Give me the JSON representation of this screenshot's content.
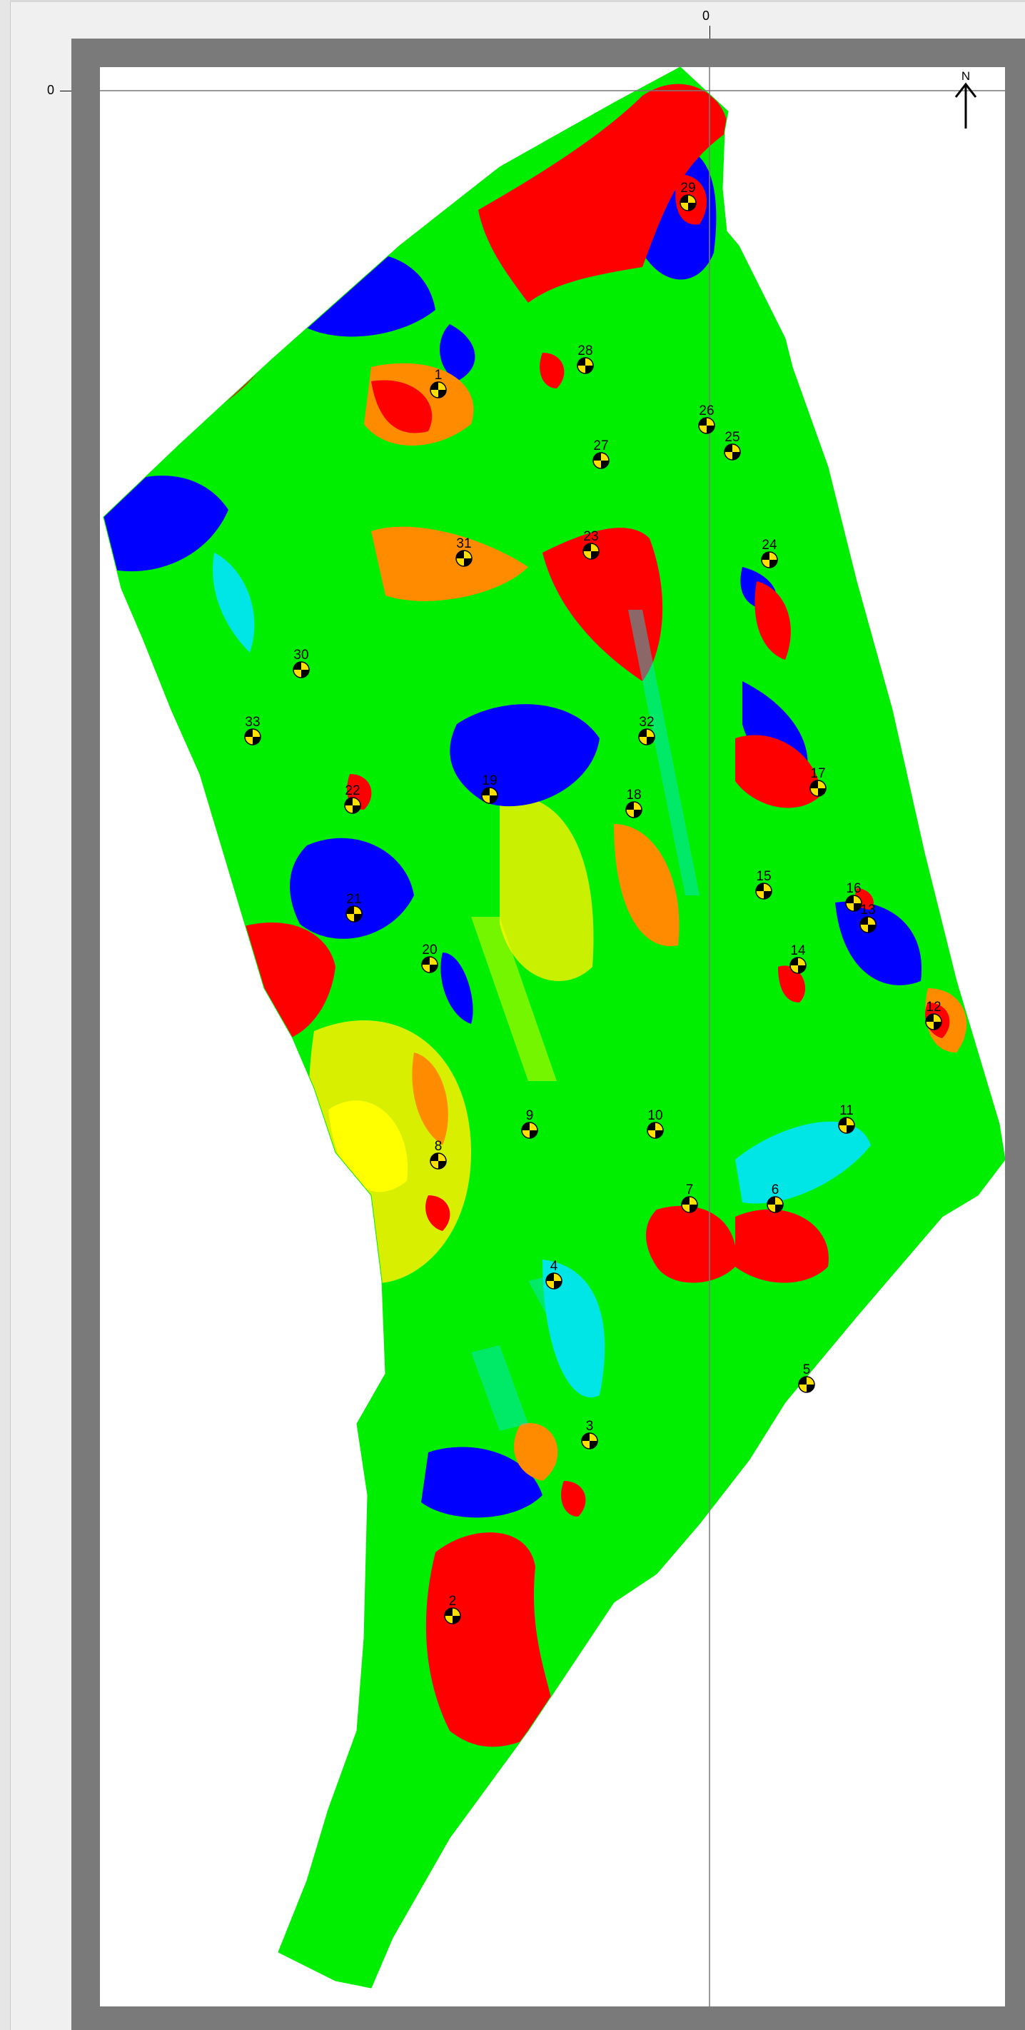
{
  "axes": {
    "x_origin_label": "0",
    "y_origin_label": "0"
  },
  "north_arrow": {
    "label": "N"
  },
  "colors": {
    "high": "#ff0000",
    "mid_high": "#ff8c00",
    "mid": "#ffff00",
    "background": "#00ee00",
    "mid_low": "#00e5e5",
    "low": "#0000ff",
    "frame": "#7a7a7a",
    "marker_fill": "#ffe000"
  },
  "wells": [
    {
      "label": "1"
    },
    {
      "label": "2"
    },
    {
      "label": "3"
    },
    {
      "label": "4"
    },
    {
      "label": "5"
    },
    {
      "label": "6"
    },
    {
      "label": "7"
    },
    {
      "label": "8"
    },
    {
      "label": "9"
    },
    {
      "label": "10"
    },
    {
      "label": "11"
    },
    {
      "label": "12"
    },
    {
      "label": "13"
    },
    {
      "label": "14"
    },
    {
      "label": "15"
    },
    {
      "label": "16"
    },
    {
      "label": "17"
    },
    {
      "label": "18"
    },
    {
      "label": "19"
    },
    {
      "label": "20"
    },
    {
      "label": "21"
    },
    {
      "label": "22"
    },
    {
      "label": "23"
    },
    {
      "label": "24"
    },
    {
      "label": "25"
    },
    {
      "label": "26"
    },
    {
      "label": "27"
    },
    {
      "label": "28"
    },
    {
      "label": "29"
    },
    {
      "label": "30"
    },
    {
      "label": "31"
    },
    {
      "label": "32"
    },
    {
      "label": "33"
    }
  ]
}
